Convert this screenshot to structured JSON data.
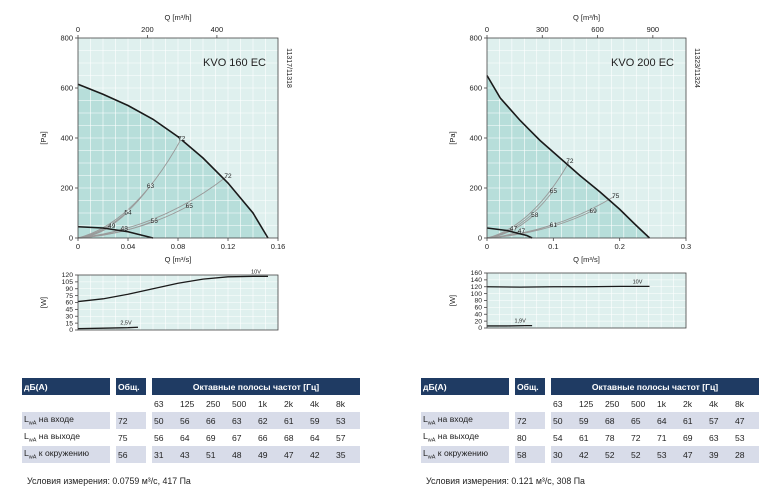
{
  "chart_data": [
    {
      "type": "line",
      "title": "KVO 160 EC",
      "side_code": "11317/11318",
      "xlabel": "Q [m³/s]",
      "xlabel_top": "Q [m³/h]",
      "ylabel": "[Pa]",
      "xlim": [
        0,
        0.16
      ],
      "ylim": [
        0,
        800
      ],
      "x_ticks": [
        "0",
        "0.04",
        "0.08",
        "0.12",
        "0.16"
      ],
      "x_ticks_values": [
        0,
        0.04,
        0.08,
        0.12,
        0.16
      ],
      "x_top_ticks": [
        "0",
        "200",
        "400"
      ],
      "x_top_ticks_values": [
        0,
        200,
        400
      ],
      "y_ticks": [
        "0",
        "200",
        "400",
        "600",
        "800"
      ],
      "y_ticks_values": [
        0,
        200,
        400,
        600,
        800
      ],
      "series": [
        {
          "kind": "curve",
          "x": [
            0,
            0.02,
            0.04,
            0.06,
            0.08,
            0.1,
            0.12,
            0.14,
            0.152
          ],
          "y": [
            615,
            575,
            530,
            475,
            405,
            320,
            220,
            100,
            0
          ]
        },
        {
          "kind": "low",
          "x": [
            0,
            0.02,
            0.04,
            0.06
          ],
          "y": [
            45,
            40,
            25,
            0
          ]
        }
      ],
      "points": [
        {
          "label": "72",
          "x": 0.083,
          "y": 400
        },
        {
          "label": "72",
          "x": 0.12,
          "y": 250
        },
        {
          "label": "63",
          "x": 0.058,
          "y": 210
        },
        {
          "label": "65",
          "x": 0.089,
          "y": 130
        },
        {
          "label": "54",
          "x": 0.04,
          "y": 105
        },
        {
          "label": "56",
          "x": 0.061,
          "y": 70
        },
        {
          "label": "49",
          "x": 0.027,
          "y": 50
        },
        {
          "label": "48",
          "x": 0.037,
          "y": 40
        }
      ],
      "power": {
        "ylabel": "[W]",
        "ylim": [
          0,
          120
        ],
        "y_ticks": [
          "0",
          "15",
          "30",
          "45",
          "60",
          "75",
          "90",
          "105",
          "120"
        ],
        "y_ticks_values": [
          0,
          15,
          30,
          45,
          60,
          75,
          90,
          105,
          120
        ],
        "series": [
          {
            "name": "10V",
            "x": [
              0,
              0.02,
              0.04,
              0.06,
              0.08,
              0.1,
              0.12,
              0.14,
              0.152
            ],
            "y": [
              62,
              68,
              78,
              90,
              102,
              111,
              116,
              117,
              117
            ]
          },
          {
            "name": "2,5V",
            "x": [
              0,
              0.02,
              0.04,
              0.048
            ],
            "y": [
              3,
              4,
              5,
              6
            ]
          }
        ]
      }
    },
    {
      "type": "line",
      "title": "KVO 200 EC",
      "side_code": "11323/11324",
      "xlabel": "Q [m³/s]",
      "xlabel_top": "Q [m³/h]",
      "ylabel": "[Pa]",
      "xlim": [
        0,
        0.3
      ],
      "ylim": [
        0,
        800
      ],
      "x_ticks": [
        "0",
        "0.1",
        "0.2",
        "0.3"
      ],
      "x_ticks_values": [
        0,
        0.1,
        0.2,
        0.3
      ],
      "x_top_ticks": [
        "0",
        "300",
        "600",
        "900"
      ],
      "x_top_ticks_values": [
        0,
        300,
        600,
        900
      ],
      "y_ticks": [
        "0",
        "200",
        "400",
        "600",
        "800"
      ],
      "y_ticks_values": [
        0,
        200,
        400,
        600,
        800
      ],
      "series": [
        {
          "kind": "curve",
          "x": [
            0,
            0.02,
            0.05,
            0.08,
            0.11,
            0.14,
            0.17,
            0.2,
            0.225,
            0.245
          ],
          "y": [
            650,
            560,
            470,
            390,
            320,
            250,
            185,
            115,
            50,
            0
          ]
        },
        {
          "kind": "low",
          "x": [
            0,
            0.03,
            0.06,
            0.068
          ],
          "y": [
            40,
            30,
            10,
            0
          ]
        }
      ],
      "points": [
        {
          "label": "72",
          "x": 0.125,
          "y": 310
        },
        {
          "label": "75",
          "x": 0.194,
          "y": 170
        },
        {
          "label": "65",
          "x": 0.1,
          "y": 190
        },
        {
          "label": "69",
          "x": 0.16,
          "y": 110
        },
        {
          "label": "58",
          "x": 0.072,
          "y": 95
        },
        {
          "label": "61",
          "x": 0.1,
          "y": 55
        },
        {
          "label": "47",
          "x": 0.04,
          "y": 40
        },
        {
          "label": "47",
          "x": 0.052,
          "y": 30
        }
      ],
      "power": {
        "ylabel": "[W]",
        "ylim": [
          0,
          160
        ],
        "y_ticks": [
          "0",
          "20",
          "40",
          "60",
          "80",
          "100",
          "120",
          "140",
          "160"
        ],
        "y_ticks_values": [
          0,
          20,
          40,
          60,
          80,
          100,
          120,
          140,
          160
        ],
        "series": [
          {
            "name": "10V",
            "x": [
              0,
              0.05,
              0.1,
              0.15,
              0.2,
              0.245
            ],
            "y": [
              120,
              119,
              120,
              120,
              121,
              121
            ]
          },
          {
            "name": "1,9V",
            "x": [
              0,
              0.03,
              0.06,
              0.068
            ],
            "y": [
              6,
              6,
              7,
              7
            ]
          }
        ]
      }
    }
  ],
  "tables": [
    {
      "header": {
        "db": "дБ(А)",
        "total": "Общ.",
        "bands": "Октавные полосы частот [Гц]"
      },
      "freqs": [
        "63",
        "125",
        "250",
        "500",
        "1k",
        "2k",
        "4k",
        "8k"
      ],
      "rows": [
        {
          "label_main": "L",
          "label_sub": "wA",
          "label_rest": " на входе",
          "total": "72",
          "values": [
            "50",
            "56",
            "66",
            "63",
            "62",
            "61",
            "59",
            "53"
          ]
        },
        {
          "label_main": "L",
          "label_sub": "wA",
          "label_rest": " на выходе",
          "total": "75",
          "values": [
            "56",
            "64",
            "69",
            "67",
            "66",
            "68",
            "64",
            "57"
          ]
        },
        {
          "label_main": "L",
          "label_sub": "wA",
          "label_rest": " к окружению",
          "total": "56",
          "values": [
            "31",
            "43",
            "51",
            "48",
            "49",
            "47",
            "42",
            "35"
          ]
        }
      ],
      "conditions": "Условия измерения: 0.0759 м³/с, 417 Па"
    },
    {
      "header": {
        "db": "дБ(А)",
        "total": "Общ.",
        "bands": "Октавные полосы частот [Гц]"
      },
      "freqs": [
        "63",
        "125",
        "250",
        "500",
        "1k",
        "2k",
        "4k",
        "8k"
      ],
      "rows": [
        {
          "label_main": "L",
          "label_sub": "wA",
          "label_rest": " на входе",
          "total": "72",
          "values": [
            "50",
            "59",
            "68",
            "65",
            "64",
            "61",
            "57",
            "47"
          ]
        },
        {
          "label_main": "L",
          "label_sub": "wA",
          "label_rest": " на выходе",
          "total": "80",
          "values": [
            "54",
            "61",
            "78",
            "72",
            "71",
            "69",
            "63",
            "53"
          ]
        },
        {
          "label_main": "L",
          "label_sub": "wA",
          "label_rest": " к окружению",
          "total": "58",
          "values": [
            "30",
            "42",
            "52",
            "52",
            "53",
            "47",
            "39",
            "28"
          ]
        }
      ],
      "conditions": "Условия измерения: 0.121 м³/с, 308 Па"
    }
  ],
  "colors": {
    "plot_bg": "#dff0ee",
    "shade": "#a9d8d3",
    "curve": "#1a1a1a",
    "grid": "#ffffff",
    "table_header": "#1f3b63",
    "row_alt": "#d8dce9"
  }
}
